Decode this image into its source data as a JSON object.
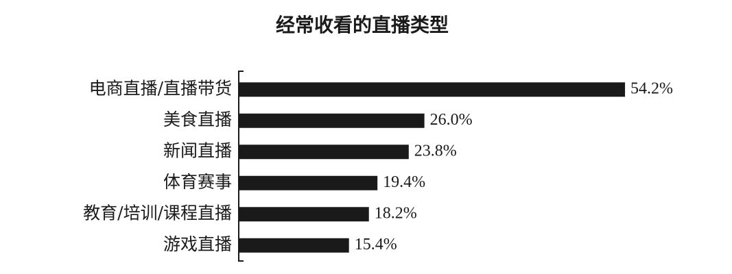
{
  "chart_data": {
    "type": "bar",
    "orientation": "horizontal",
    "title": "经常收看的直播类型",
    "categories": [
      "电商直播/直播带货",
      "美食直播",
      "新闻直播",
      "体育赛事",
      "教育/培训/课程直播",
      "游戏直播"
    ],
    "values": [
      54.2,
      26.0,
      23.8,
      19.4,
      18.2,
      15.4
    ],
    "value_labels": [
      "54.2%",
      "26.0%",
      "23.8%",
      "19.4%",
      "18.2%",
      "15.4%"
    ],
    "color": "#1a1a1a"
  }
}
